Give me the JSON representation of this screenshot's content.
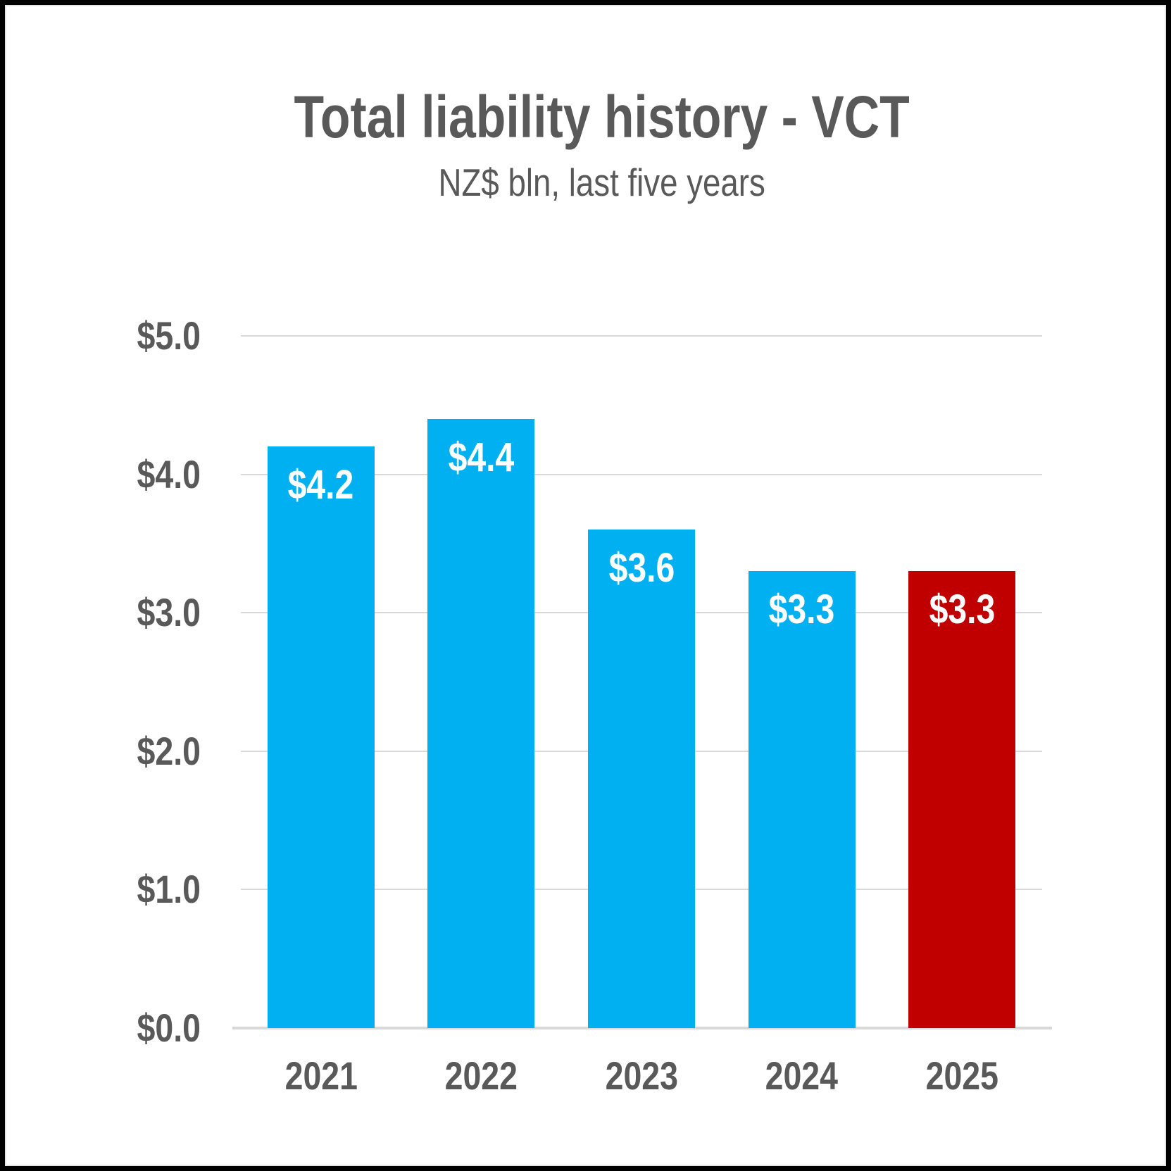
{
  "frame": {
    "background": "#FFFFFF",
    "border_color": "#000000"
  },
  "chart_data": {
    "type": "bar",
    "title": "Total liability history - VCT",
    "subtitle": "NZ$ bln, last five years",
    "categories": [
      "2021",
      "2022",
      "2023",
      "2024",
      "2025"
    ],
    "values": [
      4.2,
      4.4,
      3.6,
      3.3,
      3.3
    ],
    "bar_labels": [
      "$4.2",
      "$4.4",
      "$3.6",
      "$3.3",
      "$3.3"
    ],
    "bar_colors": [
      "#00B0F0",
      "#00B0F0",
      "#00B0F0",
      "#00B0F0",
      "#C00000"
    ],
    "yticks": [
      5,
      4,
      3,
      2,
      1,
      0
    ],
    "ytick_labels": [
      "$5.0",
      "$4.0",
      "$3.0",
      "$2.0",
      "$1.0",
      "$0.0"
    ],
    "ylim": [
      0,
      5
    ],
    "grid": true,
    "legend": "none",
    "colors": {
      "bar_default": "#00B0F0",
      "bar_highlight": "#C00000",
      "text": "#595959",
      "gridline": "#D9D9D9",
      "bar_label_text": "#FFFFFF"
    }
  }
}
